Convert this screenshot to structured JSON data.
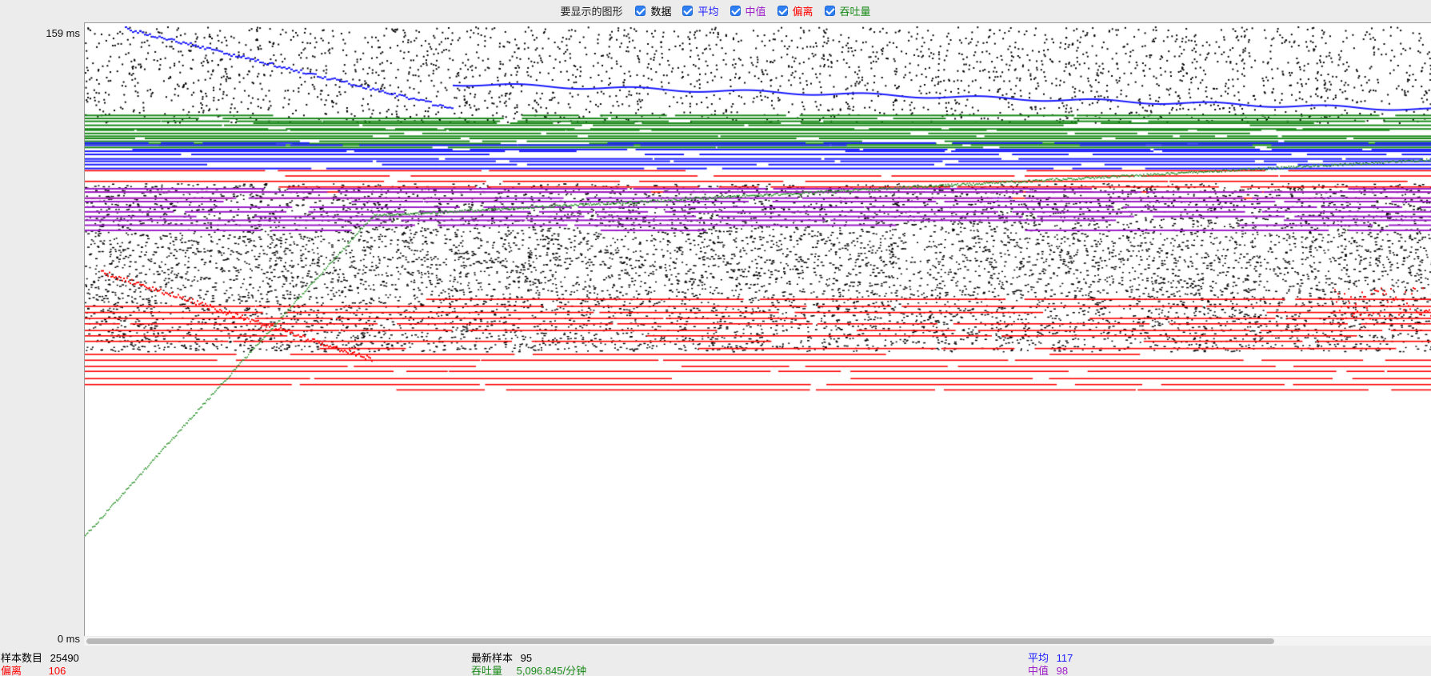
{
  "legend": {
    "title": "要显示的图形",
    "items": [
      {
        "key": "data",
        "label": "数据",
        "color": "#000000",
        "checked": true
      },
      {
        "key": "average",
        "label": "平均",
        "color": "#1a1aff",
        "checked": true
      },
      {
        "key": "median",
        "label": "中值",
        "color": "#9c1ec8",
        "checked": true
      },
      {
        "key": "deviation",
        "label": "偏离",
        "color": "#ff0000",
        "checked": true
      },
      {
        "key": "throughput",
        "label": "吞吐量",
        "color": "#1a8a1a",
        "checked": true
      }
    ]
  },
  "axis": {
    "y_max_label": "159 ms",
    "y_min_label": "0 ms"
  },
  "stats": {
    "samples_label": "样本数目",
    "samples_value": "25490",
    "deviation_label": "偏离",
    "deviation_value": "106",
    "latest_label": "最新样本",
    "latest_value": "95",
    "throughput_label": "吞吐量",
    "throughput_value": "5,096.845/分钟",
    "average_label": "平均",
    "average_value": "117",
    "median_label": "中值",
    "median_value": "98"
  },
  "chart_data": {
    "type": "scatter",
    "ylim": [
      0,
      159
    ],
    "y_unit": "ms",
    "grid": false,
    "legend_placement": "top",
    "series": [
      {
        "name": "数据",
        "color": "#000000"
      },
      {
        "name": "平均",
        "color": "#1a1aff"
      },
      {
        "name": "中值",
        "color": "#9c1ec8"
      },
      {
        "name": "偏离",
        "color": "#ff0000"
      },
      {
        "name": "吞吐量",
        "color": "#1a8a1a"
      }
    ],
    "sample_count": 25490,
    "final_average": 117,
    "final_median": 98,
    "final_deviation": 106,
    "latest_sample": 95
  }
}
